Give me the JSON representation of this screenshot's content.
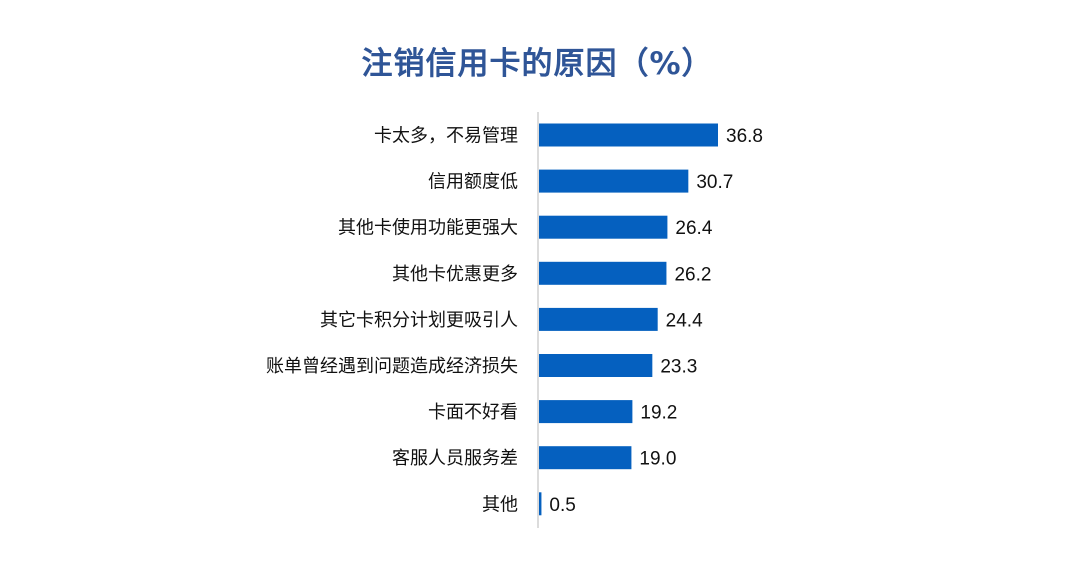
{
  "chart_data": {
    "type": "bar",
    "orientation": "horizontal",
    "title": "注销信用卡的原因（%）",
    "categories": [
      "卡太多，不易管理",
      "信用额度低",
      "其他卡使用功能更强大",
      "其他卡优惠更多",
      "其它卡积分计划更吸引人",
      "账单曾经遇到问题造成经济损失",
      "卡面不好看",
      "客服人员服务差",
      "其他"
    ],
    "values": [
      36.8,
      30.7,
      26.4,
      26.2,
      24.4,
      23.3,
      19.2,
      19.0,
      0.5
    ],
    "value_labels": [
      "36.8",
      "30.7",
      "26.4",
      "26.2",
      "24.4",
      "23.3",
      "19.2",
      "19.0",
      "0.5"
    ],
    "xlabel": "",
    "ylabel": "",
    "xlim": [
      0,
      40
    ],
    "grid": false,
    "legend": "none",
    "colors": {
      "bar": "#0560BF",
      "title": "#2F5597",
      "axis": "#D0D0D0"
    }
  }
}
